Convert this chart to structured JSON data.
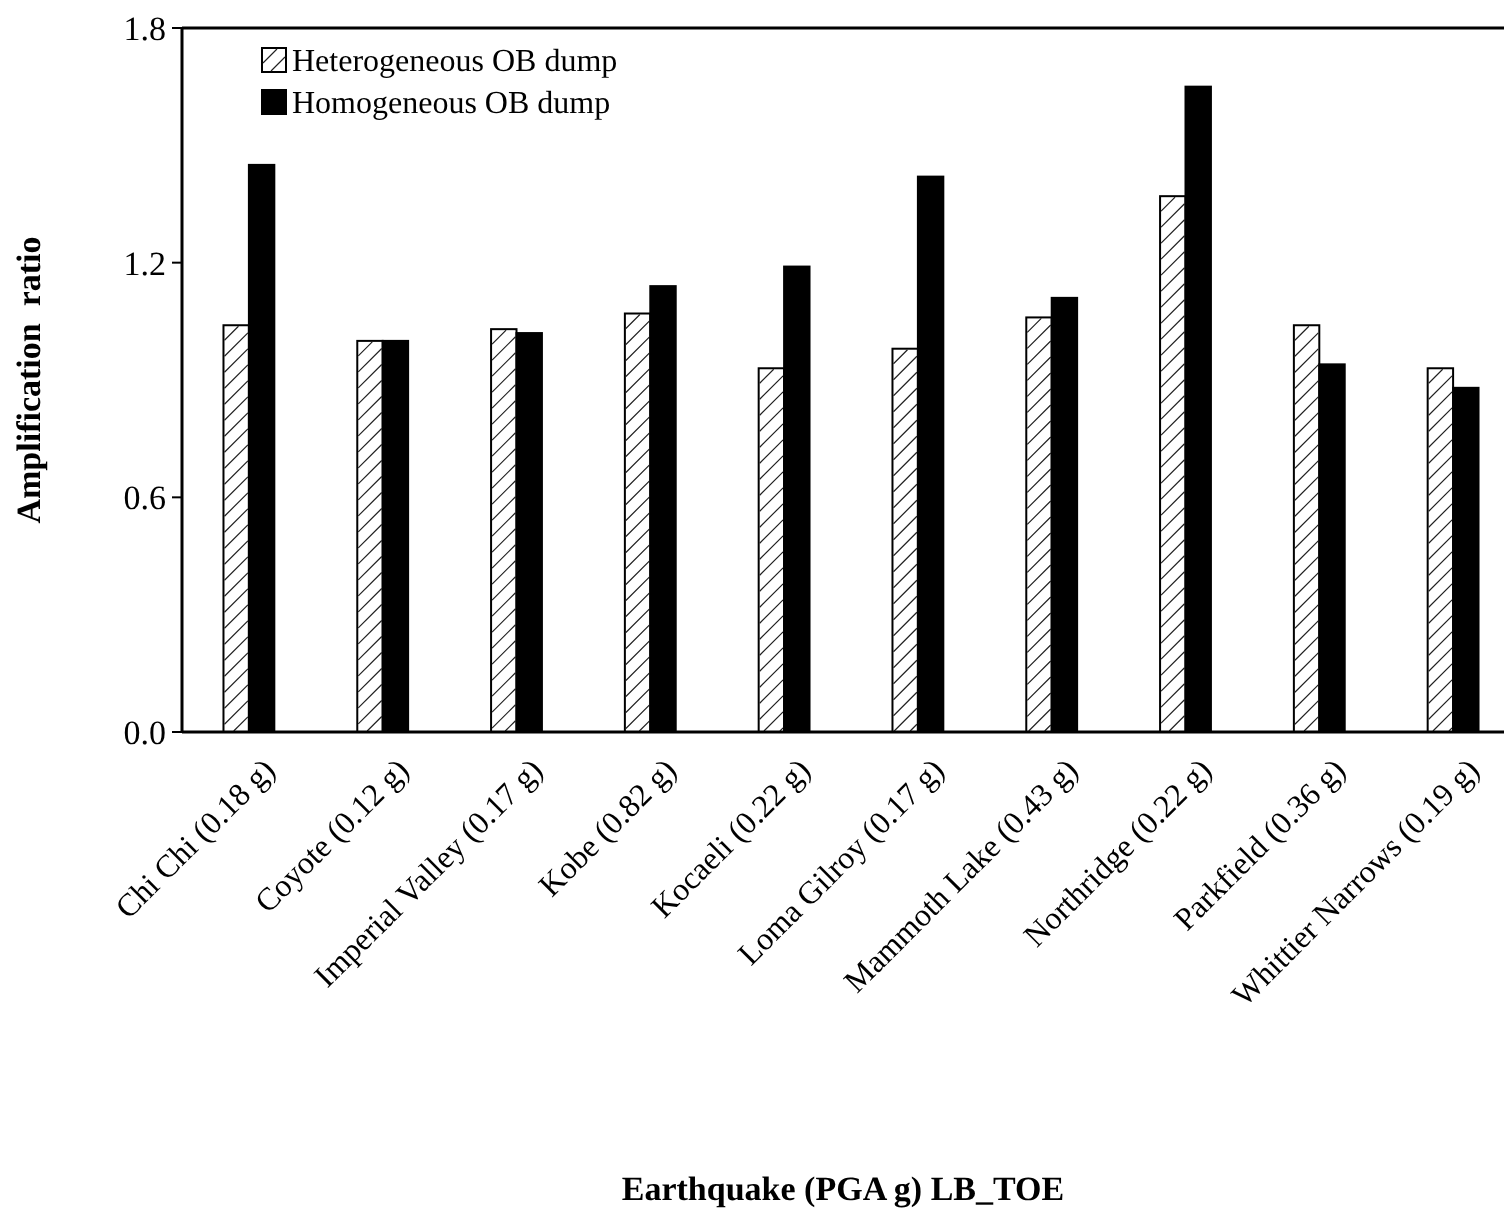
{
  "chart_data": {
    "type": "bar",
    "xlabel": "Earthquake (PGA g) LB_TOE",
    "ylabel": "Amplification  ratio",
    "categories": [
      "Chi Chi (0.18 g)",
      "Coyote (0.12 g)",
      "Imperial Valley (0.17 g)",
      "Kobe (0.82 g)",
      "Kocaeli (0.22 g)",
      "Loma Gilroy (0.17 g)",
      "Mammoth Lake (0.43 g)",
      "Northridge (0.22 g)",
      "Parkfield (0.36 g)",
      "Whittier Narrows (0.19 g)"
    ],
    "series": [
      {
        "name": "Heterogeneous OB dump",
        "color": "#ffffff",
        "values": [
          1.04,
          1.0,
          1.03,
          1.07,
          0.93,
          0.98,
          1.06,
          1.37,
          1.04,
          0.93
        ]
      },
      {
        "name": "Homogeneous OB dump",
        "color": "#000000",
        "values": [
          1.45,
          1.0,
          1.02,
          1.14,
          1.19,
          1.42,
          1.11,
          1.65,
          0.94,
          0.88
        ]
      }
    ],
    "ylim": [
      0,
      1.8
    ],
    "yticks": [
      {
        "value": 0,
        "label": "0.0"
      },
      {
        "value": 0.6,
        "label": "0.6"
      },
      {
        "value": 1.2,
        "label": "1.2"
      },
      {
        "value": 1.8,
        "label": "1.8"
      }
    ],
    "grid": false,
    "legend": "top left"
  }
}
